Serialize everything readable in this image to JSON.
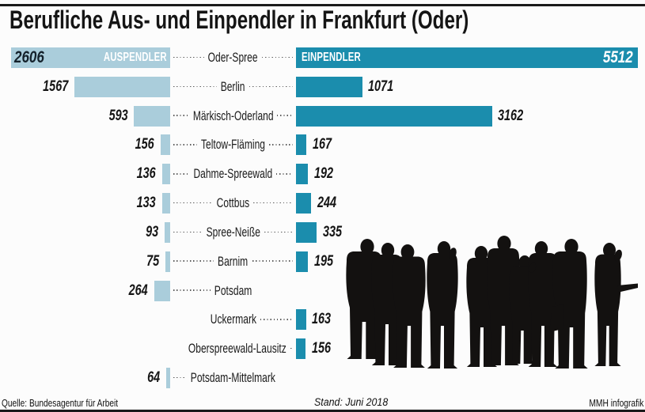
{
  "title": "Berufliche Aus- und Einpendler in Frankfurt (Oder)",
  "legend": {
    "left_header": "AUSPENDLER",
    "right_header": "EINPENDLER"
  },
  "footer": {
    "source": "Quelle: Bundesagentur für Arbeit",
    "status": "Stand: Juni 2018",
    "credit": "MMH infografik"
  },
  "colors": {
    "out_bar": "#aacddb",
    "in_bar": "#1b8dad",
    "rule": "#1a1a1a",
    "text": "#1a1a1a",
    "silhouette": "#131110"
  },
  "decoration": {
    "crowd_icon": "crowd-of-commuters-silhouette"
  },
  "chart_data": {
    "type": "bar",
    "orientation": "diverging-horizontal",
    "title": "Berufliche Aus- und Einpendler in Frankfurt (Oder)",
    "categories": [
      "Oder-Spree",
      "Berlin",
      "Märkisch-Oderland",
      "Teltow-Fläming",
      "Dahme-Spreewald",
      "Cottbus",
      "Spree-Neiße",
      "Barnim",
      "Potsdam",
      "Uckermark",
      "Oberspreewald-Lausitz",
      "Potsdam-Mittelmark"
    ],
    "series": [
      {
        "name": "Auspendler",
        "side": "left",
        "values": [
          2606,
          1567,
          593,
          156,
          136,
          133,
          93,
          75,
          264,
          null,
          null,
          64
        ]
      },
      {
        "name": "Einpendler",
        "side": "right",
        "values": [
          5512,
          1071,
          3162,
          167,
          192,
          244,
          335,
          195,
          null,
          163,
          156,
          null
        ]
      }
    ],
    "value_labels_shown": true,
    "axis": "none",
    "grid": false,
    "legend_position": "inside-first-bars"
  }
}
